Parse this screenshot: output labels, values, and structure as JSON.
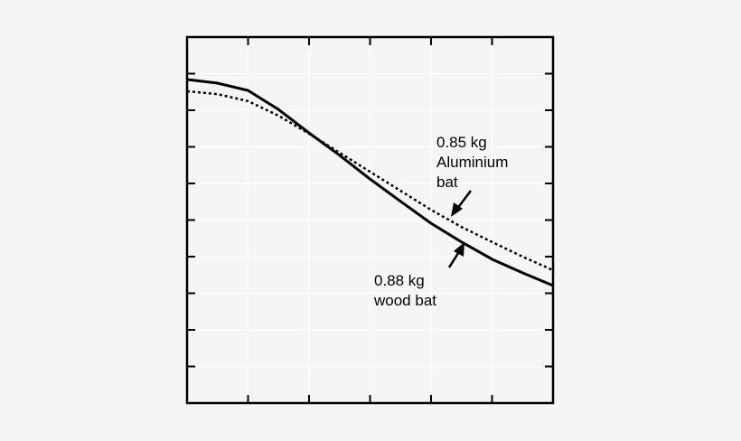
{
  "chart_data": {
    "type": "line",
    "x": [
      0,
      0.5,
      1,
      1.5,
      2,
      2.5,
      3,
      3.5,
      4,
      4.5,
      5,
      5.5,
      6
    ],
    "series": [
      {
        "name": "0.88 kg wood bat",
        "color": "#000000",
        "dash": "solid",
        "values": [
          8.84,
          8.74,
          8.54,
          8.02,
          7.38,
          6.77,
          6.12,
          5.51,
          4.91,
          4.4,
          3.93,
          3.56,
          3.21
        ]
      },
      {
        "name": "0.85 kg Aluminium bat",
        "color": "#000000",
        "dash": "dotted",
        "values": [
          8.52,
          8.44,
          8.25,
          7.85,
          7.36,
          6.84,
          6.32,
          5.8,
          5.28,
          4.81,
          4.4,
          4.0,
          3.63
        ]
      }
    ],
    "annotations": [
      {
        "lines": [
          "0.85 kg",
          "Aluminium",
          "bat"
        ]
      },
      {
        "lines": [
          "0.88 kg",
          "wood bat"
        ]
      }
    ],
    "xlim": [
      0,
      6
    ],
    "ylim": [
      0,
      10
    ],
    "xticks": [
      1,
      2,
      3,
      4,
      5
    ],
    "yticks": [
      1,
      2,
      3,
      4,
      5,
      6,
      7,
      8,
      9
    ],
    "grid": true
  }
}
